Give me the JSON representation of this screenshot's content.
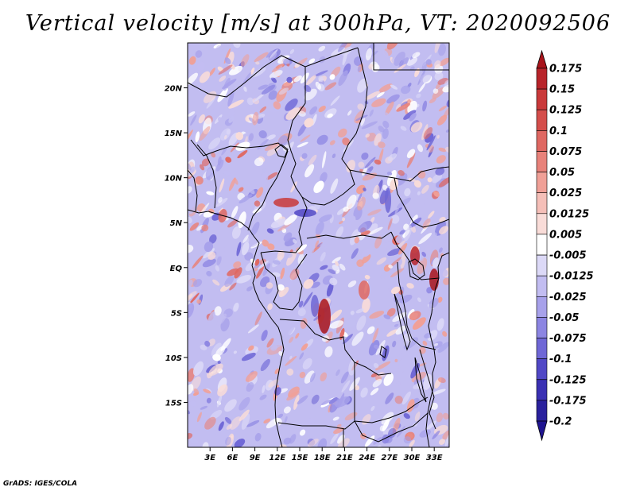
{
  "title": "Vertical velocity [m/s] at 300hPa, VT: 2020092506",
  "footer": "GrADS: IGES/COLA",
  "lat_labels": [
    "20N",
    "15N",
    "10N",
    "5N",
    "EQ",
    "5S",
    "10S",
    "15S"
  ],
  "lat_values": [
    20,
    15,
    10,
    5,
    0,
    -5,
    -10,
    -15
  ],
  "lon_labels": [
    "3E",
    "6E",
    "9E",
    "12E",
    "15E",
    "18E",
    "21E",
    "24E",
    "27E",
    "30E",
    "33E"
  ],
  "lon_values": [
    3,
    6,
    9,
    12,
    15,
    18,
    21,
    24,
    27,
    30,
    33
  ],
  "extent": {
    "lon_min": 0,
    "lon_max": 35,
    "lat_min": -20,
    "lat_max": 25
  },
  "colorbar": {
    "labels": [
      "0.175",
      "0.15",
      "0.125",
      "0.1",
      "0.075",
      "0.05",
      "0.025",
      "0.0125",
      "0.005",
      "-0.005",
      "-0.0125",
      "-0.025",
      "-0.05",
      "-0.075",
      "-0.1",
      "-0.125",
      "-0.175",
      "-0.2"
    ],
    "colors": [
      "#a8141b",
      "#b8242a",
      "#c9393a",
      "#d44e4b",
      "#df6862",
      "#e8827a",
      "#f0a097",
      "#f5bfb8",
      "#f9dcd8",
      "#ffffff",
      "#dcd9f7",
      "#c2bdf1",
      "#a7a1ea",
      "#8c85e2",
      "#6f67d6",
      "#5148c6",
      "#3a30b3",
      "#2a219d",
      "#1f1490"
    ]
  },
  "field_colors": {
    "negative": [
      "#dcd9f7",
      "#c2bdf1",
      "#a7a1ea",
      "#8c85e2",
      "#6f67d6"
    ],
    "positive": [
      "#f9dcd8",
      "#f0a097",
      "#e8827a",
      "#df6862",
      "#c9393a"
    ]
  }
}
